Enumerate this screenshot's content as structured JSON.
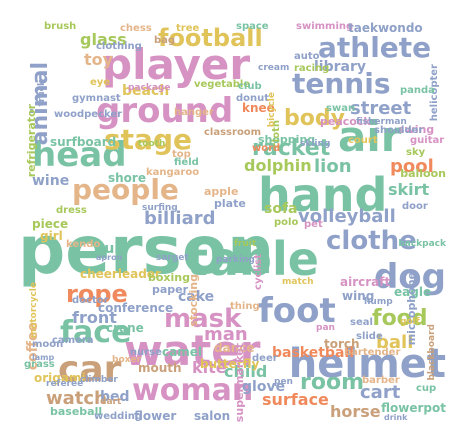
{
  "words": [
    {
      "text": "person",
      "color": "#79c3a4"
    },
    {
      "text": "player",
      "color": "#d692c3"
    },
    {
      "text": "hand",
      "color": "#79c3a4"
    },
    {
      "text": "table",
      "color": "#79c3a4"
    },
    {
      "text": "ground",
      "color": "#d692c3"
    },
    {
      "text": "head",
      "color": "#79c3a4"
    },
    {
      "text": "air",
      "color": "#79c3a4"
    },
    {
      "text": "water",
      "color": "#d692c3"
    },
    {
      "text": "helmet",
      "color": "#8fa1c8"
    },
    {
      "text": "foot",
      "color": "#8fa1c8"
    },
    {
      "text": "people",
      "color": "#e5b58a"
    },
    {
      "text": "woman",
      "color": "#d692c3"
    },
    {
      "text": "dog",
      "color": "#8fa1c8"
    },
    {
      "text": "car",
      "color": "#c9a07a"
    },
    {
      "text": "tennis",
      "color": "#8fa1c8"
    },
    {
      "text": "stage",
      "color": "#e0c45a"
    },
    {
      "text": "athlete",
      "color": "#8fa1c8"
    },
    {
      "text": "face",
      "color": "#79c3a4"
    },
    {
      "text": "body",
      "color": "#e0c45a"
    },
    {
      "text": "racket",
      "color": "#79c3a4"
    },
    {
      "text": "rope",
      "color": "#f08a5d"
    },
    {
      "text": "mask",
      "color": "#d692c3"
    },
    {
      "text": "clothe",
      "color": "#8fa1c8"
    },
    {
      "text": "football",
      "color": "#e0c45a"
    },
    {
      "text": "room",
      "color": "#79c3a4"
    },
    {
      "text": "food",
      "color": "#a7c85a"
    },
    {
      "text": "animal",
      "color": "#8fa1c8"
    },
    {
      "text": "volleyball",
      "color": "#8fa1c8"
    },
    {
      "text": "billiard",
      "color": "#8fa1c8"
    },
    {
      "text": "street",
      "color": "#8fa1c8"
    },
    {
      "text": "pool",
      "color": "#f08a5d"
    },
    {
      "text": "lion",
      "color": "#79c3a4"
    },
    {
      "text": "cart",
      "color": "#8fa1c8"
    },
    {
      "text": "watch",
      "color": "#c9a07a"
    },
    {
      "text": "front",
      "color": "#8fa1c8"
    },
    {
      "text": "ball",
      "color": "#e0c45a"
    },
    {
      "text": "kite",
      "color": "#d692c3"
    },
    {
      "text": "man",
      "color": "#d692c3"
    },
    {
      "text": "dolphin",
      "color": "#a7c85a"
    },
    {
      "text": "beach",
      "color": "#e0c45a"
    },
    {
      "text": "toy",
      "color": "#e5b58a"
    },
    {
      "text": "glass",
      "color": "#a7c85a"
    },
    {
      "text": "surface",
      "color": "#f08a5d"
    },
    {
      "text": "horse",
      "color": "#c9a07a"
    },
    {
      "text": "basketball",
      "color": "#f08a5d"
    },
    {
      "text": "child",
      "color": "#79c3a4"
    },
    {
      "text": "bed",
      "color": "#8fa1c8"
    },
    {
      "text": "skirt",
      "color": "#79c3a4"
    },
    {
      "text": "sofa",
      "color": "#a7c85a"
    },
    {
      "text": "suit",
      "color": "#79c3a4"
    },
    {
      "text": "wine",
      "color": "#8fa1c8"
    },
    {
      "text": "shore",
      "color": "#79c3a4"
    },
    {
      "text": "cake",
      "color": "#8fa1c8"
    },
    {
      "text": "glove",
      "color": "#8fa1c8"
    },
    {
      "text": "coffee",
      "color": "#e5b58a"
    },
    {
      "text": "mouth",
      "color": "#c9a07a"
    },
    {
      "text": "knee",
      "color": "#f08a5d"
    },
    {
      "text": "library",
      "color": "#8fa1c8"
    },
    {
      "text": "flower",
      "color": "#8fa1c8"
    },
    {
      "text": "salon",
      "color": "#8fa1c8"
    },
    {
      "text": "flowerpot",
      "color": "#79c3a4"
    },
    {
      "text": "piece",
      "color": "#a7c85a"
    },
    {
      "text": "crane",
      "color": "#79c3a4"
    },
    {
      "text": "dance",
      "color": "#e5b58a"
    },
    {
      "text": "camel",
      "color": "#79c3a4"
    },
    {
      "text": "butterfly",
      "color": "#e0c45a"
    },
    {
      "text": "torch",
      "color": "#c9a07a"
    },
    {
      "text": "eagle",
      "color": "#79c3a4"
    },
    {
      "text": "aircraft",
      "color": "#d692c3"
    },
    {
      "text": "wing",
      "color": "#8fa1c8"
    },
    {
      "text": "cheerleader",
      "color": "#e0c45a"
    },
    {
      "text": "conference",
      "color": "#8fa1c8"
    },
    {
      "text": "boxing",
      "color": "#a7c85a"
    },
    {
      "text": "paper",
      "color": "#8fa1c8"
    },
    {
      "text": "shopping",
      "color": "#79c3a4"
    },
    {
      "text": "classroom",
      "color": "#c9a07a"
    },
    {
      "text": "kangaroo",
      "color": "#e5b58a"
    },
    {
      "text": "field",
      "color": "#79c3a4"
    },
    {
      "text": "peacock",
      "color": "#d692c3"
    },
    {
      "text": "court",
      "color": "#e0c45a"
    },
    {
      "text": "swing",
      "color": "#d692c3"
    },
    {
      "text": "surfboard",
      "color": "#79c3a4"
    },
    {
      "text": "balloon",
      "color": "#a7c85a"
    },
    {
      "text": "door",
      "color": "#8fa1c8"
    },
    {
      "text": "bartender",
      "color": "#e5b58a"
    },
    {
      "text": "barber",
      "color": "#e5b58a"
    },
    {
      "text": "cup",
      "color": "#79c3a4"
    },
    {
      "text": "baseball",
      "color": "#79c3a4"
    },
    {
      "text": "wedding",
      "color": "#8fa1c8"
    },
    {
      "text": "apple",
      "color": "#e5b58a"
    },
    {
      "text": "plate",
      "color": "#8fa1c8"
    },
    {
      "text": "polo",
      "color": "#a7c85a"
    },
    {
      "text": "pet",
      "color": "#d692c3"
    },
    {
      "text": "refrigerator",
      "color": "#a7c85a"
    },
    {
      "text": "woodpecker",
      "color": "#8fa1c8"
    },
    {
      "text": "gymnast",
      "color": "#8fa1c8"
    },
    {
      "text": "eye",
      "color": "#e0c45a"
    },
    {
      "text": "chess",
      "color": "#e5b58a"
    },
    {
      "text": "bag",
      "color": "#c9a07a"
    },
    {
      "text": "tree",
      "color": "#e0c45a"
    },
    {
      "text": "space",
      "color": "#79c3a4"
    },
    {
      "text": "swimming",
      "color": "#d692c3"
    },
    {
      "text": "taekwondo",
      "color": "#8fa1c8"
    },
    {
      "text": "auto",
      "color": "#8fa1c8"
    },
    {
      "text": "racing",
      "color": "#a7c85a"
    },
    {
      "text": "helicopter",
      "color": "#8fa1c8"
    },
    {
      "text": "panda",
      "color": "#79c3a4"
    },
    {
      "text": "clothing",
      "color": "#8fa1c8"
    },
    {
      "text": "brush",
      "color": "#a7c85a"
    },
    {
      "text": "donut",
      "color": "#8fa1c8"
    },
    {
      "text": "vegetable",
      "color": "#a7c85a"
    },
    {
      "text": "club",
      "color": "#79c3a4"
    },
    {
      "text": "hanger",
      "color": "#e5b58a"
    },
    {
      "text": "swan",
      "color": "#79c3a4"
    },
    {
      "text": "cloth",
      "color": "#a7c85a"
    },
    {
      "text": "shoulder",
      "color": "#8fa1c8"
    },
    {
      "text": "guitar",
      "color": "#d692c3"
    },
    {
      "text": "sky",
      "color": "#a7c85a"
    },
    {
      "text": "dress",
      "color": "#a7c85a"
    },
    {
      "text": "girl",
      "color": "#e0c45a"
    },
    {
      "text": "kendo",
      "color": "#e5b58a"
    },
    {
      "text": "doctor",
      "color": "#8fa1c8"
    },
    {
      "text": "moon",
      "color": "#8fa1c8"
    },
    {
      "text": "camera",
      "color": "#8fa1c8"
    },
    {
      "text": "nurse",
      "color": "#8fa1c8"
    },
    {
      "text": "grass",
      "color": "#79c3a4"
    },
    {
      "text": "boxer",
      "color": "#e5b58a"
    },
    {
      "text": "origami",
      "color": "#e0c45a"
    },
    {
      "text": "referee",
      "color": "#8fa1c8"
    },
    {
      "text": "climber",
      "color": "#8fa1c8"
    },
    {
      "text": "dart",
      "color": "#c9a07a"
    },
    {
      "text": "pen",
      "color": "#8fa1c8"
    },
    {
      "text": "deer",
      "color": "#8fa1c8"
    },
    {
      "text": "slide",
      "color": "#8fa1c8"
    },
    {
      "text": "seal",
      "color": "#8fa1c8"
    },
    {
      "text": "microphone",
      "color": "#8fa1c8"
    },
    {
      "text": "blackboard",
      "color": "#c9a07a"
    },
    {
      "text": "hump",
      "color": "#8fa1c8"
    },
    {
      "text": "stocking",
      "color": "#e5b58a"
    },
    {
      "text": "supermarket",
      "color": "#d692c3"
    },
    {
      "text": "thing",
      "color": "#e5b58a"
    },
    {
      "text": "cyclist",
      "color": "#d692c3"
    },
    {
      "text": "word",
      "color": "#f08a5d"
    },
    {
      "text": "match",
      "color": "#e0c45a"
    },
    {
      "text": "sarget",
      "color": "#8fa1c8"
    },
    {
      "text": "surfing",
      "color": "#8fa1c8"
    },
    {
      "text": "top",
      "color": "#e5b58a"
    },
    {
      "text": "tooth",
      "color": "#a7c85a"
    },
    {
      "text": "truck",
      "color": "#8fa1c8"
    },
    {
      "text": "cream",
      "color": "#8fa1c8"
    },
    {
      "text": "package",
      "color": "#d692c3"
    },
    {
      "text": "bicycle",
      "color": "#e0c45a"
    },
    {
      "text": "fisherman",
      "color": "#8fa1c8"
    },
    {
      "text": "skiing",
      "color": "#8fa1c8"
    },
    {
      "text": "backpack",
      "color": "#79c3a4"
    },
    {
      "text": "golf",
      "color": "#e0c45a"
    },
    {
      "text": "fruit",
      "color": "#a7c85a"
    },
    {
      "text": "pan",
      "color": "#d692c3"
    },
    {
      "text": "parking",
      "color": "#8fa1c8"
    },
    {
      "text": "lamp",
      "color": "#8fa1c8"
    },
    {
      "text": "motorcycle",
      "color": "#e0c45a"
    },
    {
      "text": "apron",
      "color": "#8fa1c8"
    },
    {
      "text": "drink",
      "color": "#8fa1c8"
    }
  ]
}
